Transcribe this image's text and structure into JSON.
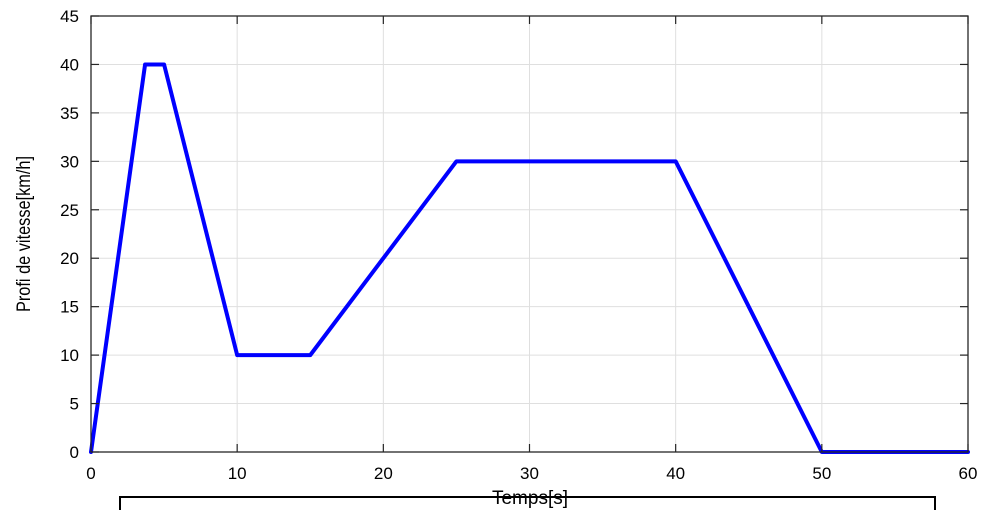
{
  "chart_data": {
    "type": "line",
    "title": "",
    "xlabel": "Temps[s]",
    "ylabel": "Profi de vitesse[km/h]",
    "xlim": [
      0,
      60
    ],
    "ylim": [
      0,
      45
    ],
    "xticks": [
      0,
      10,
      20,
      30,
      40,
      50,
      60
    ],
    "yticks": [
      0,
      5,
      10,
      15,
      20,
      25,
      30,
      35,
      40,
      45
    ],
    "grid": true,
    "legend": "none",
    "series": [
      {
        "color": "#0000ff",
        "x": [
          0,
          3.7,
          5,
          10,
          15,
          25,
          40,
          50,
          60
        ],
        "y": [
          0,
          40,
          40,
          10,
          10,
          30,
          30,
          0,
          0
        ]
      }
    ]
  }
}
